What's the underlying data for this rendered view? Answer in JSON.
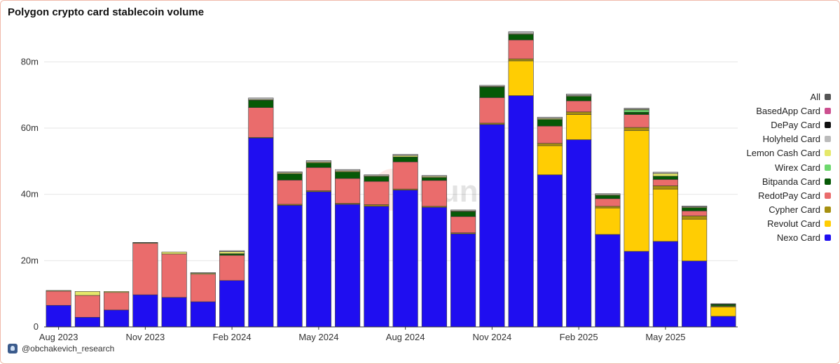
{
  "title": "Polygon crypto card stablecoin volume",
  "author": "@obchakevich_research",
  "watermark": "Dune",
  "chart_data": {
    "type": "bar",
    "stacked": true,
    "title": "Polygon crypto card stablecoin volume",
    "xlabel": "",
    "ylabel": "",
    "ylim": [
      0,
      90000000
    ],
    "yticks": [
      0,
      20000000,
      40000000,
      60000000,
      80000000
    ],
    "ytick_labels": [
      "0",
      "20m",
      "40m",
      "60m",
      "80m"
    ],
    "x_tick_labels": [
      {
        "category": "2023-08",
        "label": "Aug 2023"
      },
      {
        "category": "2023-11",
        "label": "Nov 2023"
      },
      {
        "category": "2024-02",
        "label": "Feb 2024"
      },
      {
        "category": "2024-05",
        "label": "May 2024"
      },
      {
        "category": "2024-08",
        "label": "Aug 2024"
      },
      {
        "category": "2024-11",
        "label": "Nov 2024"
      },
      {
        "category": "2025-02",
        "label": "Feb 2025"
      },
      {
        "category": "2025-05",
        "label": "May 2025"
      }
    ],
    "grid": "horizontal",
    "legend_position": "right",
    "categories": [
      "2023-08",
      "2023-09",
      "2023-10",
      "2023-11",
      "2023-12",
      "2024-01",
      "2024-02",
      "2024-03",
      "2024-04",
      "2024-05",
      "2024-06",
      "2024-07",
      "2024-08",
      "2024-09",
      "2024-10",
      "2024-11",
      "2024-12",
      "2025-01",
      "2025-02",
      "2025-03",
      "2025-04",
      "2025-05",
      "2025-06",
      "2025-07"
    ],
    "series": [
      {
        "name": "Nexo Card",
        "color": "#1f0ef0",
        "values": [
          6.5,
          2.9,
          5.1,
          9.7,
          8.9,
          7.6,
          14.0,
          57.0,
          36.7,
          40.8,
          37.0,
          36.4,
          41.3,
          36.1,
          28.1,
          61.1,
          69.8,
          45.9,
          56.5,
          27.9,
          22.8,
          25.8,
          19.9,
          3.2
        ]
      },
      {
        "name": "Revolut Card",
        "color": "#ffcd03",
        "values": [
          0,
          0,
          0,
          0,
          0,
          0,
          0,
          0,
          0,
          0,
          0,
          0,
          0,
          0,
          0,
          0,
          10.5,
          8.8,
          7.6,
          8.0,
          36.5,
          15.8,
          12.6,
          2.8
        ]
      },
      {
        "name": "Cypher Card",
        "color": "#a69010",
        "values": [
          0,
          0,
          0,
          0,
          0,
          0,
          0,
          0.2,
          0.3,
          0.3,
          0.3,
          0.5,
          0.3,
          0.3,
          0.3,
          0.4,
          0.6,
          0.7,
          0.8,
          0.5,
          0.9,
          1.0,
          1.0,
          0.3
        ]
      },
      {
        "name": "RedotPay Card",
        "color": "#ea6c6c",
        "values": [
          4.3,
          6.6,
          5.3,
          15.5,
          13.1,
          8.3,
          7.6,
          9.0,
          7.3,
          7.0,
          7.5,
          7.0,
          8.2,
          7.8,
          4.9,
          7.7,
          5.7,
          5.2,
          3.3,
          2.3,
          3.9,
          1.9,
          1.5,
          0
        ]
      },
      {
        "name": "Bitpanda Card",
        "color": "#065906",
        "values": [
          0,
          0,
          0,
          0,
          0,
          0,
          0.5,
          2.2,
          1.9,
          1.4,
          2.0,
          1.5,
          1.5,
          0.9,
          1.5,
          3.2,
          1.7,
          2.0,
          1.4,
          1.0,
          0.7,
          1.0,
          1.0,
          0.5
        ]
      },
      {
        "name": "Wirex Card",
        "color": "#6dd86d",
        "values": [
          0,
          0,
          0,
          0,
          0,
          0,
          0,
          0,
          0,
          0,
          0,
          0,
          0,
          0,
          0,
          0,
          0,
          0,
          0,
          0,
          0.7,
          0,
          0,
          0
        ]
      },
      {
        "name": "Lemon Cash Card",
        "color": "#e5e86a",
        "values": [
          0.2,
          1.2,
          0.3,
          0.2,
          0.6,
          0.3,
          0.6,
          0.2,
          0.3,
          0.3,
          0.3,
          0.2,
          0.4,
          0.3,
          0.2,
          0.2,
          0.2,
          0.3,
          0.2,
          0.2,
          0.2,
          0.8,
          0.2,
          0.1
        ]
      },
      {
        "name": "Holyheld Card",
        "color": "#bbbbbb",
        "values": [
          0,
          0,
          0,
          0.1,
          0,
          0.2,
          0.3,
          0.5,
          0.3,
          0.4,
          0.4,
          0.3,
          0.4,
          0.3,
          0.3,
          0.3,
          0.6,
          0.4,
          0.5,
          0.3,
          0.3,
          0.4,
          0.3,
          0.1
        ]
      },
      {
        "name": "DePay Card",
        "color": "#111111",
        "values": [
          0,
          0,
          0,
          0,
          0,
          0,
          0,
          0,
          0,
          0,
          0,
          0,
          0,
          0,
          0,
          0,
          0,
          0,
          0,
          0,
          0,
          0,
          0,
          0
        ]
      },
      {
        "name": "BasedApp Card",
        "color": "#cc4f8f",
        "values": [
          0,
          0,
          0,
          0,
          0,
          0,
          0,
          0,
          0,
          0,
          0,
          0,
          0,
          0,
          0,
          0,
          0,
          0,
          0,
          0,
          0,
          0,
          0,
          0
        ]
      },
      {
        "name": "All",
        "color": "#555555",
        "values": [
          0,
          0,
          0,
          0,
          0,
          0,
          0,
          0,
          0,
          0,
          0,
          0,
          0,
          0,
          0,
          0,
          0,
          0,
          0,
          0,
          0,
          0,
          0,
          0
        ]
      }
    ],
    "value_unit": "million"
  },
  "legend_order": [
    "All",
    "BasedApp Card",
    "DePay Card",
    "Holyheld Card",
    "Lemon Cash Card",
    "Wirex Card",
    "Bitpanda Card",
    "RedotPay Card",
    "Cypher Card",
    "Revolut Card",
    "Nexo Card"
  ]
}
